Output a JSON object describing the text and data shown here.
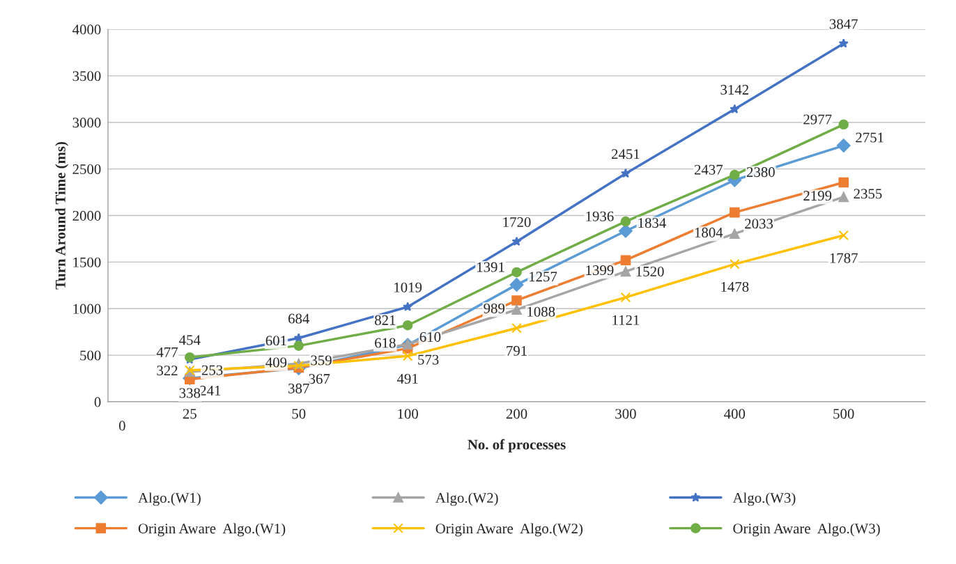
{
  "chart_data": {
    "type": "line",
    "xlabel": "No. of processes",
    "ylabel": "Turn Around Time (ms)",
    "categories": [
      "25",
      "50",
      "100",
      "200",
      "300",
      "400",
      "500"
    ],
    "ylim": [
      0,
      4000
    ],
    "yticks": [
      0,
      500,
      1000,
      1500,
      2000,
      2500,
      3000,
      3500,
      4000
    ],
    "grid": "y",
    "legend": "bottom",
    "data_labels": true,
    "annotations": [
      "0"
    ],
    "series": [
      {
        "name": "Algo.(W1)",
        "color": "#5b9bd5",
        "marker": "diamond",
        "values": [
          253,
          359,
          610,
          1257,
          1834,
          2380,
          2751
        ]
      },
      {
        "name": "Origin Aware  Algo.(W1)",
        "color": "#ed7d31",
        "marker": "square",
        "values": [
          241,
          367,
          573,
          1088,
          1520,
          2033,
          2355
        ]
      },
      {
        "name": "Algo.(W2)",
        "color": "#a5a5a5",
        "marker": "triangle",
        "values": [
          322,
          409,
          618,
          989,
          1399,
          1804,
          2199
        ]
      },
      {
        "name": "Origin Aware  Algo.(W2)",
        "color": "#ffc000",
        "marker": "cross",
        "values": [
          338,
          387,
          491,
          791,
          1121,
          1478,
          1787
        ]
      },
      {
        "name": "Algo.(W3)",
        "color": "#4472c4",
        "marker": "star",
        "values": [
          454,
          684,
          1019,
          1720,
          2451,
          3142,
          3847
        ]
      },
      {
        "name": "Origin Aware  Algo.(W3)",
        "color": "#70ad47",
        "marker": "circle",
        "values": [
          477,
          601,
          821,
          1391,
          1936,
          2437,
          2977
        ]
      }
    ]
  }
}
